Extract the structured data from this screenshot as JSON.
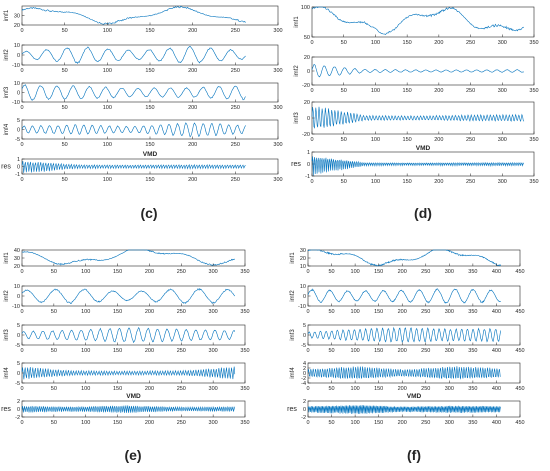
{
  "chart_data": [
    {
      "panel_label": "(c)",
      "type": "line",
      "title": "VMD",
      "xticks": [
        0,
        50,
        100,
        150,
        200,
        250,
        300
      ],
      "xlim": [
        0,
        300
      ],
      "n": 263,
      "color": "#0072BD",
      "series": [
        {
          "name": "imf1",
          "ylim": [
            20,
            40
          ],
          "yticks": [
            20,
            30
          ],
          "signal": {
            "base": 30,
            "components": [
              {
                "amp": 7,
                "period": 160,
                "phase": 0.6
              },
              {
                "amp": 2,
                "period": 60,
                "phase": 1.0
              }
            ]
          }
        },
        {
          "name": "imf2",
          "ylim": [
            -10,
            10
          ],
          "yticks": [
            -10,
            0,
            10
          ],
          "signal": {
            "base": 0,
            "components": [
              {
                "amp": 8,
                "period": 24,
                "phase": 0.3
              }
            ],
            "env": [
              0.4,
              1.0,
              0.55,
              1.0,
              0.5
            ]
          }
        },
        {
          "name": "imf3",
          "ylim": [
            -10,
            10
          ],
          "yticks": [
            -10,
            0,
            10
          ],
          "signal": {
            "base": 0,
            "components": [
              {
                "amp": 8,
                "period": 19,
                "phase": 0.6
              }
            ],
            "env": [
              1.0,
              0.8,
              0.55,
              0.6,
              0.9
            ]
          }
        },
        {
          "name": "imf4",
          "ylim": [
            -5,
            5
          ],
          "yticks": [
            -5,
            0,
            5
          ],
          "signal": {
            "base": 0,
            "components": [
              {
                "amp": 3,
                "period": 10,
                "phase": 0.1
              }
            ],
            "env": [
              0.6,
              0.8,
              0.5,
              1.2,
              0.7
            ]
          }
        },
        {
          "name": "res",
          "ylim": [
            -1,
            1
          ],
          "yticks": [
            -1,
            0,
            1
          ],
          "signal": {
            "base": 0,
            "components": [
              {
                "amp": 0.9,
                "period": 3,
                "phase": 0.2
              }
            ],
            "env": [
              1.0,
              0.3,
              0.25,
              0.3,
              0.25
            ]
          }
        }
      ]
    },
    {
      "panel_label": "(d)",
      "type": "line",
      "title": "VMD",
      "xticks": [
        0,
        50,
        100,
        150,
        200,
        250,
        300,
        350
      ],
      "xlim": [
        0,
        350
      ],
      "n": 335,
      "color": "#0072BD",
      "series": [
        {
          "name": "imf1",
          "ylim": [
            50,
            100
          ],
          "yticks": [
            50,
            100
          ],
          "signal": {
            "base": 78,
            "components": [
              {
                "amp": 16,
                "period": 190,
                "phase": 1.2
              },
              {
                "amp": 7,
                "period": 70,
                "phase": 0.4
              }
            ]
          }
        },
        {
          "name": "imf2",
          "ylim": [
            -20,
            20
          ],
          "yticks": [
            -20,
            0,
            20
          ],
          "signal": {
            "base": 0,
            "components": [
              {
                "amp": 6,
                "period": 16,
                "phase": 0.2
              }
            ],
            "env": [
              1.5,
              0.35,
              0.25,
              0.25,
              0.3
            ]
          }
        },
        {
          "name": "imf3",
          "ylim": [
            -20,
            20
          ],
          "yticks": [
            -20,
            0,
            20
          ],
          "signal": {
            "base": 0,
            "components": [
              {
                "amp": 10,
                "period": 5,
                "phase": 0.1
              }
            ],
            "env": [
              1.5,
              0.3,
              0.25,
              0.35,
              0.4
            ]
          }
        },
        {
          "name": "res",
          "ylim": [
            -1,
            1
          ],
          "yticks": [
            -1,
            0,
            1
          ],
          "signal": {
            "base": 0,
            "components": [
              {
                "amp": 0.7,
                "period": 3,
                "phase": 0.3
              }
            ],
            "env": [
              1.3,
              0.2,
              0.15,
              0.2,
              0.2
            ]
          }
        }
      ]
    },
    {
      "panel_label": "(e)",
      "type": "line",
      "title": "VMD",
      "xticks": [
        0,
        50,
        100,
        150,
        200,
        250,
        300,
        350
      ],
      "xlim": [
        0,
        350
      ],
      "n": 335,
      "color": "#0072BD",
      "series": [
        {
          "name": "imf1",
          "ylim": [
            20,
            40
          ],
          "yticks": [
            20,
            30,
            40
          ],
          "signal": {
            "base": 32,
            "components": [
              {
                "amp": 8,
                "period": 230,
                "phase": 2.5
              },
              {
                "amp": 3,
                "period": 80,
                "phase": 0.3
              }
            ]
          }
        },
        {
          "name": "imf2",
          "ylim": [
            -10,
            10
          ],
          "yticks": [
            -10,
            0,
            10
          ],
          "signal": {
            "base": 0,
            "components": [
              {
                "amp": 7,
                "period": 45,
                "phase": 0.5
              }
            ],
            "env": [
              0.8,
              1.0,
              0.6,
              1.0,
              0.9
            ]
          }
        },
        {
          "name": "imf3",
          "ylim": [
            -5,
            5
          ],
          "yticks": [
            -5,
            0,
            5
          ],
          "signal": {
            "base": 0,
            "components": [
              {
                "amp": 3.5,
                "period": 15,
                "phase": 0.4
              }
            ],
            "env": [
              0.5,
              0.7,
              1.0,
              0.8,
              0.6
            ]
          }
        },
        {
          "name": "imf4",
          "ylim": [
            -5,
            5
          ],
          "yticks": [
            -5,
            0,
            5
          ],
          "signal": {
            "base": 0,
            "components": [
              {
                "amp": 3,
                "period": 4,
                "phase": 0.2
              }
            ],
            "env": [
              1.0,
              0.35,
              0.3,
              0.35,
              1.0
            ]
          }
        },
        {
          "name": "res",
          "ylim": [
            -2,
            2
          ],
          "yticks": [
            -2,
            0,
            2
          ],
          "signal": {
            "base": 0,
            "components": [
              {
                "amp": 1.1,
                "period": 3,
                "phase": 0.1
              }
            ],
            "env": [
              0.8,
              0.6,
              0.9,
              0.5,
              0.6
            ]
          }
        }
      ]
    },
    {
      "panel_label": "(f)",
      "type": "line",
      "title": "VMD",
      "xticks": [
        0,
        50,
        100,
        150,
        200,
        250,
        300,
        350,
        400,
        450
      ],
      "xlim": [
        0,
        450
      ],
      "n": 410,
      "color": "#0072BD",
      "series": [
        {
          "name": "imf1",
          "ylim": [
            10,
            30
          ],
          "yticks": [
            10,
            20,
            30
          ],
          "signal": {
            "base": 21,
            "components": [
              {
                "amp": 8,
                "period": 260,
                "phase": 0.8
              },
              {
                "amp": 3,
                "period": 90,
                "phase": 1.1
              }
            ]
          }
        },
        {
          "name": "imf2",
          "ylim": [
            -10,
            10
          ],
          "yticks": [
            -10,
            0,
            10
          ],
          "signal": {
            "base": 0,
            "components": [
              {
                "amp": 7,
                "period": 38,
                "phase": 0.2
              }
            ],
            "env": [
              0.9,
              0.7,
              0.8,
              1.0,
              0.8
            ]
          }
        },
        {
          "name": "imf3",
          "ylim": [
            -5,
            5
          ],
          "yticks": [
            -5,
            0,
            5
          ],
          "signal": {
            "base": 0,
            "components": [
              {
                "amp": 3.5,
                "period": 12,
                "phase": 0.3
              }
            ],
            "env": [
              0.4,
              0.8,
              1.0,
              0.8,
              0.9
            ]
          }
        },
        {
          "name": "imf4",
          "ylim": [
            -4,
            4
          ],
          "yticks": [
            -4,
            -2,
            0,
            2,
            4
          ],
          "signal": {
            "base": 0,
            "components": [
              {
                "amp": 2.5,
                "period": 5,
                "phase": 0.2
              }
            ],
            "env": [
              0.6,
              1.0,
              0.5,
              1.0,
              0.7
            ]
          }
        },
        {
          "name": "res",
          "ylim": [
            -2,
            2
          ],
          "yticks": [
            -2,
            0,
            2
          ],
          "signal": {
            "base": 0,
            "components": [
              {
                "amp": 1.2,
                "period": 3,
                "phase": 0.2
              }
            ],
            "env": [
              0.7,
              1.0,
              0.6,
              0.8,
              0.7
            ]
          }
        }
      ]
    }
  ]
}
